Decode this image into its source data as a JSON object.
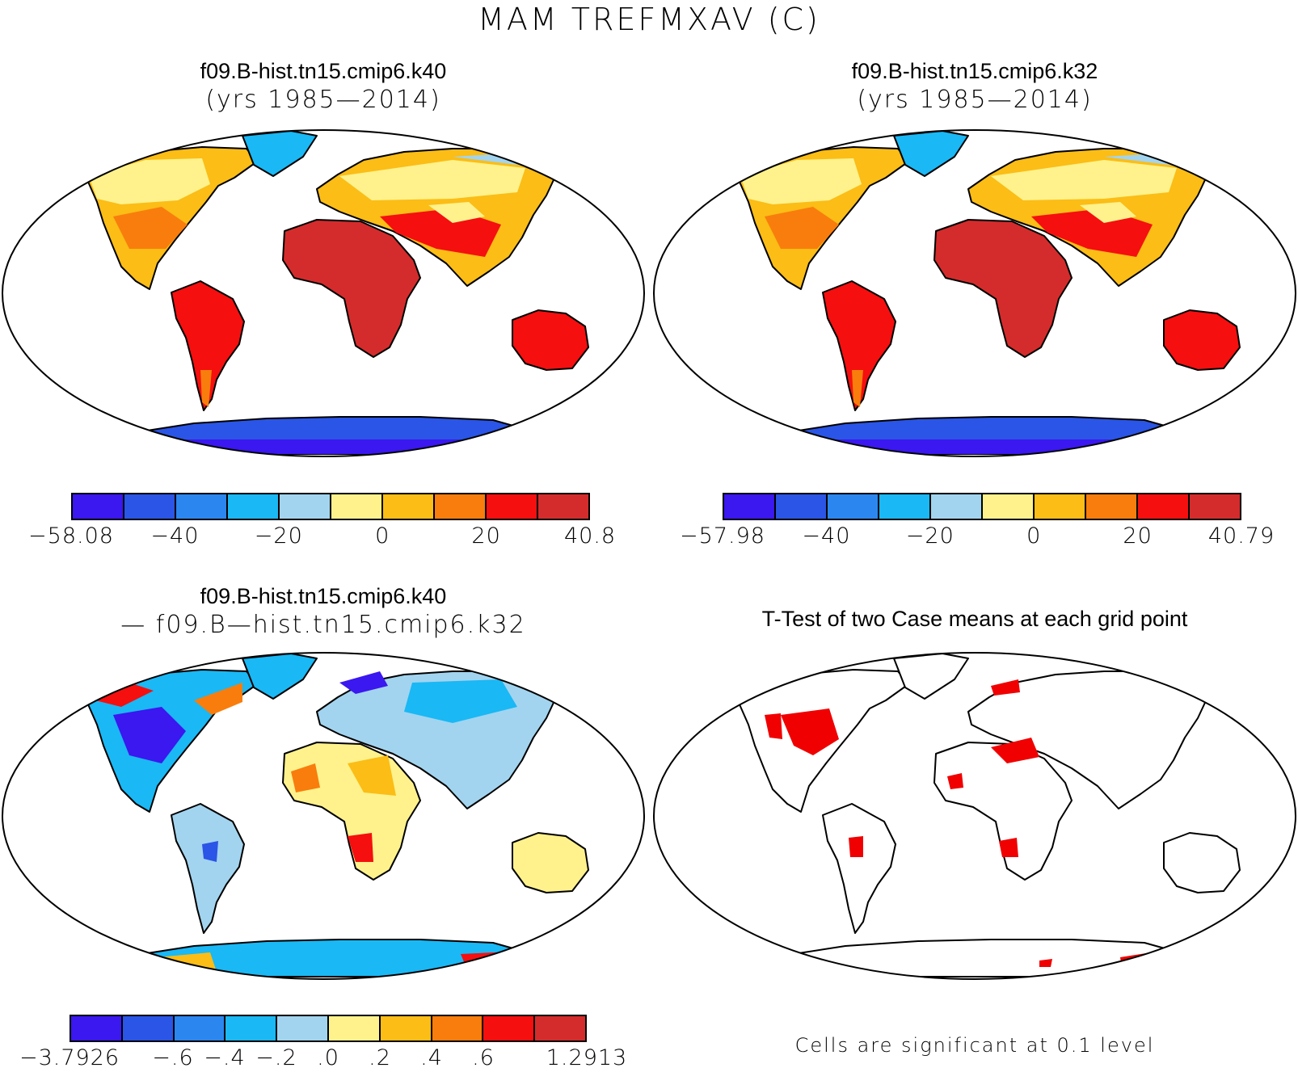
{
  "figure": {
    "title": "MAM TREFMXAV (C)",
    "palette": [
      "#3b17f0",
      "#2a55e6",
      "#2c86f0",
      "#1ab8f5",
      "#a2d4ef",
      "#fff28c",
      "#fbbd16",
      "#f97d0c",
      "#f50f0f",
      "#d42c2c"
    ]
  },
  "panels": {
    "top_left": {
      "title": "f09.B-hist.tn15.cmip6.k40",
      "subtitle": "(yrs 1985—2014)",
      "colorbar_labels": [
        "−58.08",
        "−40",
        "−20",
        "0",
        "20",
        "40.8"
      ]
    },
    "top_right": {
      "title": "f09.B-hist.tn15.cmip6.k32",
      "subtitle": "(yrs 1985—2014)",
      "colorbar_labels": [
        "−57.98",
        "−40",
        "−20",
        "0",
        "20",
        "40.79"
      ]
    },
    "bottom_left": {
      "title": "f09.B-hist.tn15.cmip6.k40",
      "subtitle": "— f09.B—hist.tn15.cmip6.k32",
      "colorbar_labels": [
        "−3.7926",
        "−.6",
        "−.4",
        "−.2",
        ".0",
        ".2",
        ".4",
        ".6",
        "1.2913"
      ]
    },
    "bottom_right": {
      "title": "T-Test of two Case means at each grid point",
      "note": "Cells are significant at 0.1 level",
      "significant_color": "#f00000"
    }
  }
}
